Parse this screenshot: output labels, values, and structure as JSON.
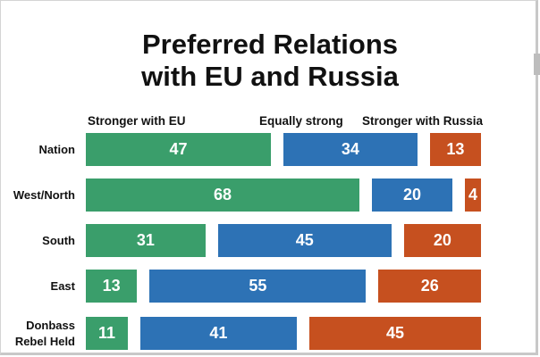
{
  "chart_data": {
    "type": "bar",
    "orientation": "horizontal",
    "stacked": true,
    "title": "Preferred Relations with EU and Russia",
    "title_lines": [
      "Preferred Relations",
      "with EU and Russia"
    ],
    "categories": [
      "Nation",
      "West/North",
      "South",
      "East",
      "Donbass Rebel Held"
    ],
    "category_lines": [
      [
        "Nation"
      ],
      [
        "West/North"
      ],
      [
        "South"
      ],
      [
        "East"
      ],
      [
        "Donbass",
        "Rebel Held"
      ]
    ],
    "series": [
      {
        "name": "Stronger with EU",
        "color": "#3a9e6b",
        "values": [
          47,
          68,
          31,
          13,
          11
        ]
      },
      {
        "name": "Equally strong",
        "color": "#2d72b5",
        "values": [
          34,
          20,
          45,
          55,
          41
        ]
      },
      {
        "name": "Stronger with Russia",
        "color": "#c6501f",
        "values": [
          13,
          4,
          20,
          26,
          45
        ]
      }
    ],
    "legend": "top",
    "xlabel": "",
    "ylabel": "",
    "grid": false
  }
}
